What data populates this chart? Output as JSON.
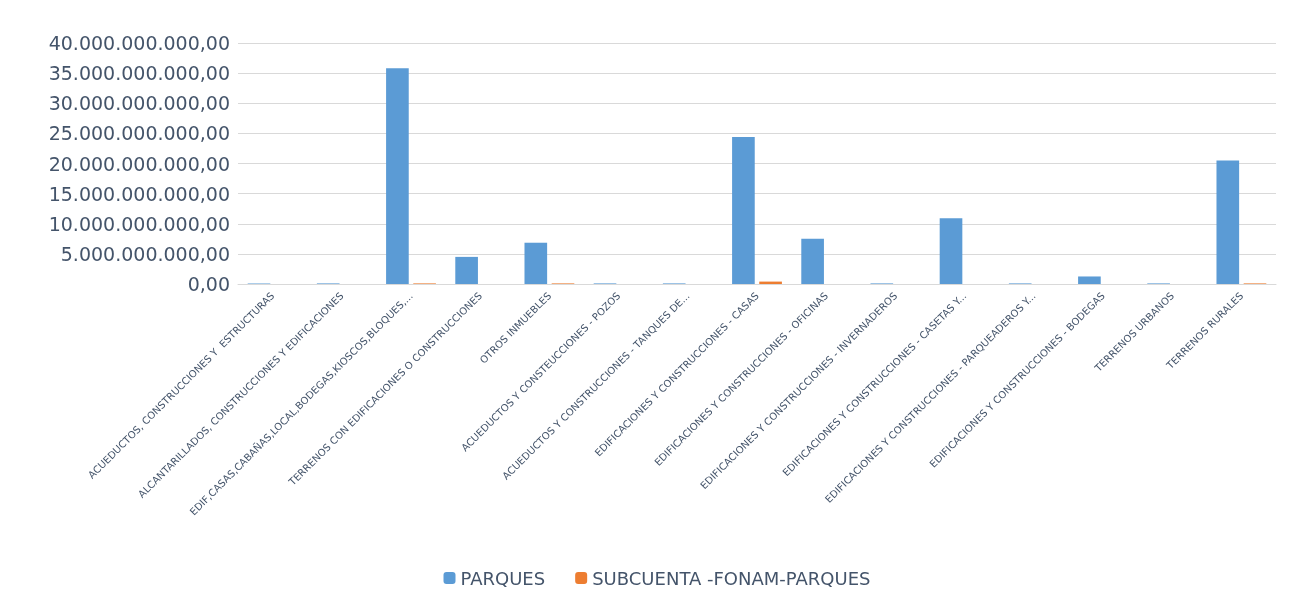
{
  "chart_data": {
    "type": "bar",
    "categories": [
      "ACUEDUCTOS, CONSTRUCCIONES Y  ESTRUCTURAS",
      "ALCANTARILLADOS, CONSTRUCCIONES Y EDIFICACIONES",
      "EDIF,CASAS,CABAÑAS,LOCAL,BODEGAS,KIOSCOS,BLOQUES,...",
      "TERRENOS CON EDIFICACIONES O CONSTRUCCIONES",
      "OTROS INMUEBLES",
      "ACUEDUCTOS Y CONSTEUCCIONES - POZOS",
      "ACUEDUCTOS Y CONSTRUCCIONES - TANQUES DE...",
      "EDIFICACIONES Y CONSTRUCCIONES - CASAS",
      "EDIFICACIONES Y CONSTRUCCIONES - OFICINAS",
      "EDIFICACIONES Y CONSTRUCCIONES - INVERNADEROS",
      "EDIFICACIONES Y CONSTRUCCIONES - CASETAS Y...",
      "EDIFICACIONES Y CONSTRUCCIONES - PARQUEADEROS Y...",
      "EDIFICACIONES Y CONSTRUCCIONES - BODEGAS",
      "TERRENOS URBANOS",
      "TERRENOS RURALES"
    ],
    "series": [
      {
        "name": "PARQUES",
        "color": "#5b9bd5",
        "values": [
          100000000,
          100000000,
          35800000000,
          4500000000,
          6850000000,
          100000000,
          100000000,
          24400000000,
          7500000000,
          100000000,
          10900000000,
          100000000,
          1250000000,
          100000000,
          20500000000
        ]
      },
      {
        "name": "SUBCUENTA -FONAM-PARQUES",
        "color": "#ed7d31",
        "values": [
          null,
          null,
          100000000,
          null,
          100000000,
          null,
          null,
          400000000,
          null,
          null,
          null,
          null,
          null,
          null,
          100000000
        ]
      }
    ],
    "ylim": [
      0,
      40000000000
    ],
    "yticks": [
      {
        "value": 0,
        "label": "0,00"
      },
      {
        "value": 5000000000,
        "label": "5.000.000.000,00"
      },
      {
        "value": 10000000000,
        "label": "10.000.000.000,00"
      },
      {
        "value": 15000000000,
        "label": "15.000.000.000,00"
      },
      {
        "value": 20000000000,
        "label": "20.000.000.000,00"
      },
      {
        "value": 25000000000,
        "label": "25.000.000.000,00"
      },
      {
        "value": 30000000000,
        "label": "30.000.000.000,00"
      },
      {
        "value": 35000000000,
        "label": "35.000.000.000,00"
      },
      {
        "value": 40000000000,
        "label": "40.000.000.000,00"
      }
    ],
    "grid": "y",
    "legend": "bottom"
  }
}
